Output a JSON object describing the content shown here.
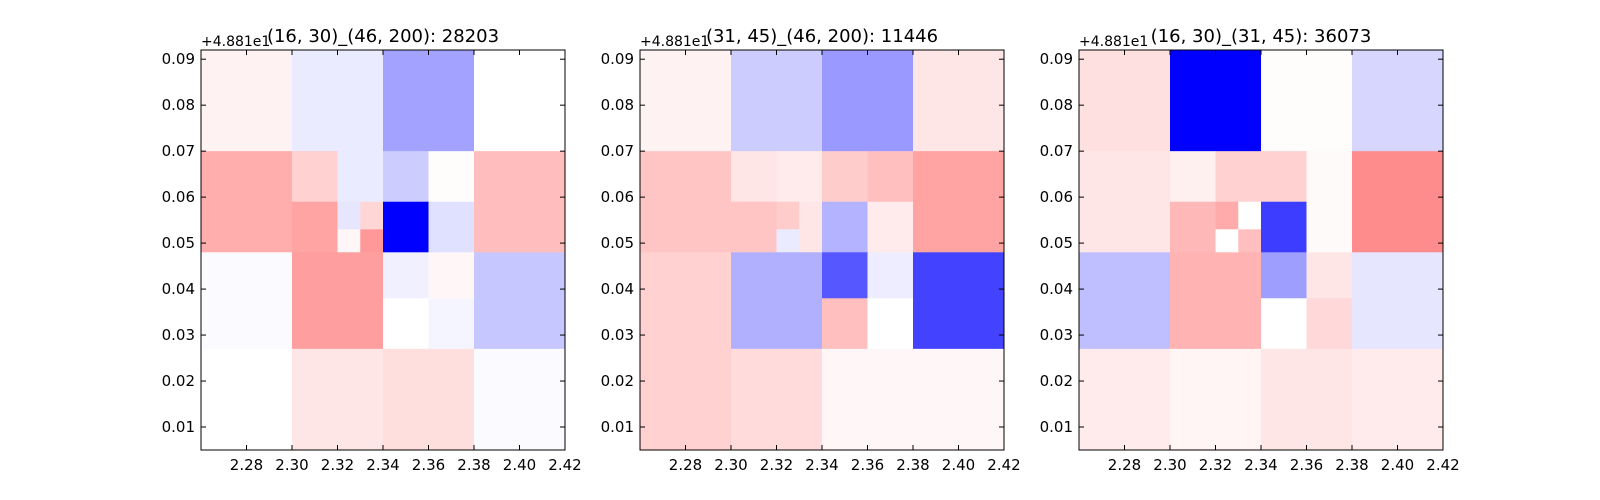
{
  "chart_data": [
    {
      "type": "heatmap",
      "title": "(16, 30)_(46, 200): 28203",
      "y_offset_label": "+4.881e1",
      "xlim": [
        2.26,
        2.42
      ],
      "ylim": [
        0.005,
        0.092
      ],
      "x_ticks": [
        "2.28",
        "2.30",
        "2.32",
        "2.34",
        "2.36",
        "2.38",
        "2.40",
        "2.42"
      ],
      "y_ticks": [
        "0.01",
        "0.02",
        "0.03",
        "0.04",
        "0.05",
        "0.06",
        "0.07",
        "0.08",
        "0.09"
      ],
      "colormap": {
        "negative": "#0000ff",
        "zero": "#ffffff",
        "positive": "#ff0000"
      },
      "cells": [
        {
          "x0": 2.26,
          "x1": 2.3,
          "y0": 0.07,
          "y1": 0.092,
          "v": 0.05
        },
        {
          "x0": 2.3,
          "x1": 2.34,
          "y0": 0.07,
          "y1": 0.092,
          "v": -0.08
        },
        {
          "x0": 2.34,
          "x1": 2.38,
          "y0": 0.07,
          "y1": 0.092,
          "v": -0.36
        },
        {
          "x0": 2.38,
          "x1": 2.42,
          "y0": 0.07,
          "y1": 0.092,
          "v": 0.0
        },
        {
          "x0": 2.26,
          "x1": 2.3,
          "y0": 0.048,
          "y1": 0.07,
          "v": 0.32
        },
        {
          "x0": 2.3,
          "x1": 2.32,
          "y0": 0.059,
          "y1": 0.07,
          "v": 0.18
        },
        {
          "x0": 2.32,
          "x1": 2.34,
          "y0": 0.059,
          "y1": 0.07,
          "v": -0.08
        },
        {
          "x0": 2.3,
          "x1": 2.32,
          "y0": 0.048,
          "y1": 0.059,
          "v": 0.36
        },
        {
          "x0": 2.32,
          "x1": 2.33,
          "y0": 0.053,
          "y1": 0.059,
          "v": -0.1
        },
        {
          "x0": 2.33,
          "x1": 2.34,
          "y0": 0.053,
          "y1": 0.059,
          "v": 0.16
        },
        {
          "x0": 2.32,
          "x1": 2.33,
          "y0": 0.048,
          "y1": 0.053,
          "v": 0.03
        },
        {
          "x0": 2.33,
          "x1": 2.34,
          "y0": 0.048,
          "y1": 0.053,
          "v": 0.4
        },
        {
          "x0": 2.34,
          "x1": 2.36,
          "y0": 0.059,
          "y1": 0.07,
          "v": -0.2
        },
        {
          "x0": 2.36,
          "x1": 2.38,
          "y0": 0.059,
          "y1": 0.07,
          "v": 0.01
        },
        {
          "x0": 2.34,
          "x1": 2.36,
          "y0": 0.048,
          "y1": 0.059,
          "v": -1.0
        },
        {
          "x0": 2.36,
          "x1": 2.38,
          "y0": 0.048,
          "y1": 0.059,
          "v": -0.12
        },
        {
          "x0": 2.38,
          "x1": 2.42,
          "y0": 0.048,
          "y1": 0.07,
          "v": 0.26
        },
        {
          "x0": 2.26,
          "x1": 2.3,
          "y0": 0.027,
          "y1": 0.048,
          "v": -0.02
        },
        {
          "x0": 2.3,
          "x1": 2.34,
          "y0": 0.027,
          "y1": 0.048,
          "v": 0.38
        },
        {
          "x0": 2.34,
          "x1": 2.36,
          "y0": 0.038,
          "y1": 0.048,
          "v": -0.06
        },
        {
          "x0": 2.36,
          "x1": 2.38,
          "y0": 0.038,
          "y1": 0.048,
          "v": 0.03
        },
        {
          "x0": 2.34,
          "x1": 2.36,
          "y0": 0.027,
          "y1": 0.038,
          "v": 0.0
        },
        {
          "x0": 2.36,
          "x1": 2.38,
          "y0": 0.027,
          "y1": 0.038,
          "v": -0.04
        },
        {
          "x0": 2.38,
          "x1": 2.42,
          "y0": 0.027,
          "y1": 0.048,
          "v": -0.22
        },
        {
          "x0": 2.26,
          "x1": 2.3,
          "y0": 0.005,
          "y1": 0.027,
          "v": 0.0
        },
        {
          "x0": 2.3,
          "x1": 2.34,
          "y0": 0.005,
          "y1": 0.027,
          "v": 0.1
        },
        {
          "x0": 2.34,
          "x1": 2.38,
          "y0": 0.005,
          "y1": 0.027,
          "v": 0.13
        },
        {
          "x0": 2.38,
          "x1": 2.42,
          "y0": 0.005,
          "y1": 0.027,
          "v": -0.02
        }
      ]
    },
    {
      "type": "heatmap",
      "title": "(31, 45)_(46, 200): 11446",
      "y_offset_label": "+4.881e1",
      "xlim": [
        2.26,
        2.42
      ],
      "ylim": [
        0.005,
        0.092
      ],
      "x_ticks": [
        "2.28",
        "2.30",
        "2.32",
        "2.34",
        "2.36",
        "2.38",
        "2.40",
        "2.42"
      ],
      "y_ticks": [
        "0.01",
        "0.02",
        "0.03",
        "0.04",
        "0.05",
        "0.06",
        "0.07",
        "0.08",
        "0.09"
      ],
      "colormap": {
        "negative": "#0000ff",
        "zero": "#ffffff",
        "positive": "#ff0000"
      },
      "cells": [
        {
          "x0": 2.26,
          "x1": 2.3,
          "y0": 0.07,
          "y1": 0.092,
          "v": 0.05
        },
        {
          "x0": 2.3,
          "x1": 2.34,
          "y0": 0.07,
          "y1": 0.092,
          "v": -0.2
        },
        {
          "x0": 2.34,
          "x1": 2.38,
          "y0": 0.07,
          "y1": 0.092,
          "v": -0.4
        },
        {
          "x0": 2.38,
          "x1": 2.42,
          "y0": 0.07,
          "y1": 0.092,
          "v": 0.1
        },
        {
          "x0": 2.26,
          "x1": 2.3,
          "y0": 0.048,
          "y1": 0.07,
          "v": 0.23
        },
        {
          "x0": 2.3,
          "x1": 2.32,
          "y0": 0.059,
          "y1": 0.07,
          "v": 0.1
        },
        {
          "x0": 2.32,
          "x1": 2.34,
          "y0": 0.059,
          "y1": 0.07,
          "v": 0.08
        },
        {
          "x0": 2.3,
          "x1": 2.32,
          "y0": 0.048,
          "y1": 0.059,
          "v": 0.23
        },
        {
          "x0": 2.32,
          "x1": 2.33,
          "y0": 0.053,
          "y1": 0.059,
          "v": 0.2
        },
        {
          "x0": 2.33,
          "x1": 2.34,
          "y0": 0.053,
          "y1": 0.059,
          "v": 0.1
        },
        {
          "x0": 2.32,
          "x1": 2.33,
          "y0": 0.048,
          "y1": 0.053,
          "v": -0.08
        },
        {
          "x0": 2.33,
          "x1": 2.34,
          "y0": 0.048,
          "y1": 0.053,
          "v": 0.1
        },
        {
          "x0": 2.34,
          "x1": 2.36,
          "y0": 0.059,
          "y1": 0.07,
          "v": 0.2
        },
        {
          "x0": 2.36,
          "x1": 2.38,
          "y0": 0.059,
          "y1": 0.07,
          "v": 0.25
        },
        {
          "x0": 2.34,
          "x1": 2.36,
          "y0": 0.048,
          "y1": 0.059,
          "v": -0.3
        },
        {
          "x0": 2.36,
          "x1": 2.38,
          "y0": 0.048,
          "y1": 0.059,
          "v": 0.08
        },
        {
          "x0": 2.38,
          "x1": 2.42,
          "y0": 0.048,
          "y1": 0.07,
          "v": 0.36
        },
        {
          "x0": 2.26,
          "x1": 2.3,
          "y0": 0.027,
          "y1": 0.048,
          "v": 0.18
        },
        {
          "x0": 2.3,
          "x1": 2.34,
          "y0": 0.027,
          "y1": 0.048,
          "v": -0.31
        },
        {
          "x0": 2.34,
          "x1": 2.36,
          "y0": 0.038,
          "y1": 0.048,
          "v": -0.66
        },
        {
          "x0": 2.36,
          "x1": 2.38,
          "y0": 0.038,
          "y1": 0.048,
          "v": -0.07
        },
        {
          "x0": 2.34,
          "x1": 2.36,
          "y0": 0.027,
          "y1": 0.038,
          "v": 0.25
        },
        {
          "x0": 2.36,
          "x1": 2.38,
          "y0": 0.027,
          "y1": 0.038,
          "v": 0.0
        },
        {
          "x0": 2.38,
          "x1": 2.42,
          "y0": 0.027,
          "y1": 0.048,
          "v": -0.74
        },
        {
          "x0": 2.26,
          "x1": 2.3,
          "y0": 0.005,
          "y1": 0.027,
          "v": 0.18
        },
        {
          "x0": 2.3,
          "x1": 2.34,
          "y0": 0.005,
          "y1": 0.027,
          "v": 0.14
        },
        {
          "x0": 2.34,
          "x1": 2.38,
          "y0": 0.005,
          "y1": 0.027,
          "v": 0.03
        },
        {
          "x0": 2.38,
          "x1": 2.42,
          "y0": 0.005,
          "y1": 0.027,
          "v": 0.03
        }
      ]
    },
    {
      "type": "heatmap",
      "title": "(16, 30)_(31, 45): 36073",
      "y_offset_label": "+4.881e1",
      "xlim": [
        2.26,
        2.42
      ],
      "ylim": [
        0.005,
        0.092
      ],
      "x_ticks": [
        "2.28",
        "2.30",
        "2.32",
        "2.34",
        "2.36",
        "2.38",
        "2.40",
        "2.42"
      ],
      "y_ticks": [
        "0.01",
        "0.02",
        "0.03",
        "0.04",
        "0.05",
        "0.06",
        "0.07",
        "0.08",
        "0.09"
      ],
      "colormap": {
        "negative": "#0000ff",
        "zero": "#ffffff",
        "positive": "#ff0000"
      },
      "cells": [
        {
          "x0": 2.26,
          "x1": 2.3,
          "y0": 0.07,
          "y1": 0.092,
          "v": 0.12
        },
        {
          "x0": 2.3,
          "x1": 2.34,
          "y0": 0.07,
          "y1": 0.092,
          "v": -1.0
        },
        {
          "x0": 2.34,
          "x1": 2.38,
          "y0": 0.07,
          "y1": 0.092,
          "v": 0.01
        },
        {
          "x0": 2.38,
          "x1": 2.42,
          "y0": 0.07,
          "y1": 0.092,
          "v": -0.16
        },
        {
          "x0": 2.26,
          "x1": 2.3,
          "y0": 0.048,
          "y1": 0.07,
          "v": 0.1
        },
        {
          "x0": 2.3,
          "x1": 2.32,
          "y0": 0.059,
          "y1": 0.07,
          "v": 0.06
        },
        {
          "x0": 2.32,
          "x1": 2.34,
          "y0": 0.059,
          "y1": 0.07,
          "v": 0.18
        },
        {
          "x0": 2.3,
          "x1": 2.32,
          "y0": 0.048,
          "y1": 0.059,
          "v": 0.28
        },
        {
          "x0": 2.32,
          "x1": 2.33,
          "y0": 0.053,
          "y1": 0.059,
          "v": 0.33
        },
        {
          "x0": 2.33,
          "x1": 2.34,
          "y0": 0.053,
          "y1": 0.059,
          "v": 0.0
        },
        {
          "x0": 2.32,
          "x1": 2.33,
          "y0": 0.048,
          "y1": 0.053,
          "v": 0.0
        },
        {
          "x0": 2.33,
          "x1": 2.34,
          "y0": 0.048,
          "y1": 0.053,
          "v": 0.25
        },
        {
          "x0": 2.34,
          "x1": 2.36,
          "y0": 0.059,
          "y1": 0.07,
          "v": 0.18
        },
        {
          "x0": 2.36,
          "x1": 2.38,
          "y0": 0.059,
          "y1": 0.07,
          "v": 0.02
        },
        {
          "x0": 2.34,
          "x1": 2.36,
          "y0": 0.048,
          "y1": 0.059,
          "v": -0.76
        },
        {
          "x0": 2.36,
          "x1": 2.38,
          "y0": 0.048,
          "y1": 0.059,
          "v": 0.02
        },
        {
          "x0": 2.38,
          "x1": 2.42,
          "y0": 0.048,
          "y1": 0.07,
          "v": 0.45
        },
        {
          "x0": 2.26,
          "x1": 2.3,
          "y0": 0.027,
          "y1": 0.048,
          "v": -0.25
        },
        {
          "x0": 2.3,
          "x1": 2.34,
          "y0": 0.027,
          "y1": 0.048,
          "v": 0.3
        },
        {
          "x0": 2.34,
          "x1": 2.36,
          "y0": 0.038,
          "y1": 0.048,
          "v": -0.38
        },
        {
          "x0": 2.36,
          "x1": 2.38,
          "y0": 0.038,
          "y1": 0.048,
          "v": 0.1
        },
        {
          "x0": 2.34,
          "x1": 2.36,
          "y0": 0.027,
          "y1": 0.038,
          "v": 0.0
        },
        {
          "x0": 2.36,
          "x1": 2.38,
          "y0": 0.027,
          "y1": 0.038,
          "v": 0.15
        },
        {
          "x0": 2.38,
          "x1": 2.42,
          "y0": 0.027,
          "y1": 0.048,
          "v": -0.1
        },
        {
          "x0": 2.26,
          "x1": 2.3,
          "y0": 0.005,
          "y1": 0.027,
          "v": 0.08
        },
        {
          "x0": 2.3,
          "x1": 2.34,
          "y0": 0.005,
          "y1": 0.027,
          "v": 0.04
        },
        {
          "x0": 2.34,
          "x1": 2.38,
          "y0": 0.005,
          "y1": 0.027,
          "v": 0.1
        },
        {
          "x0": 2.38,
          "x1": 2.42,
          "y0": 0.005,
          "y1": 0.027,
          "v": 0.08
        }
      ]
    }
  ]
}
